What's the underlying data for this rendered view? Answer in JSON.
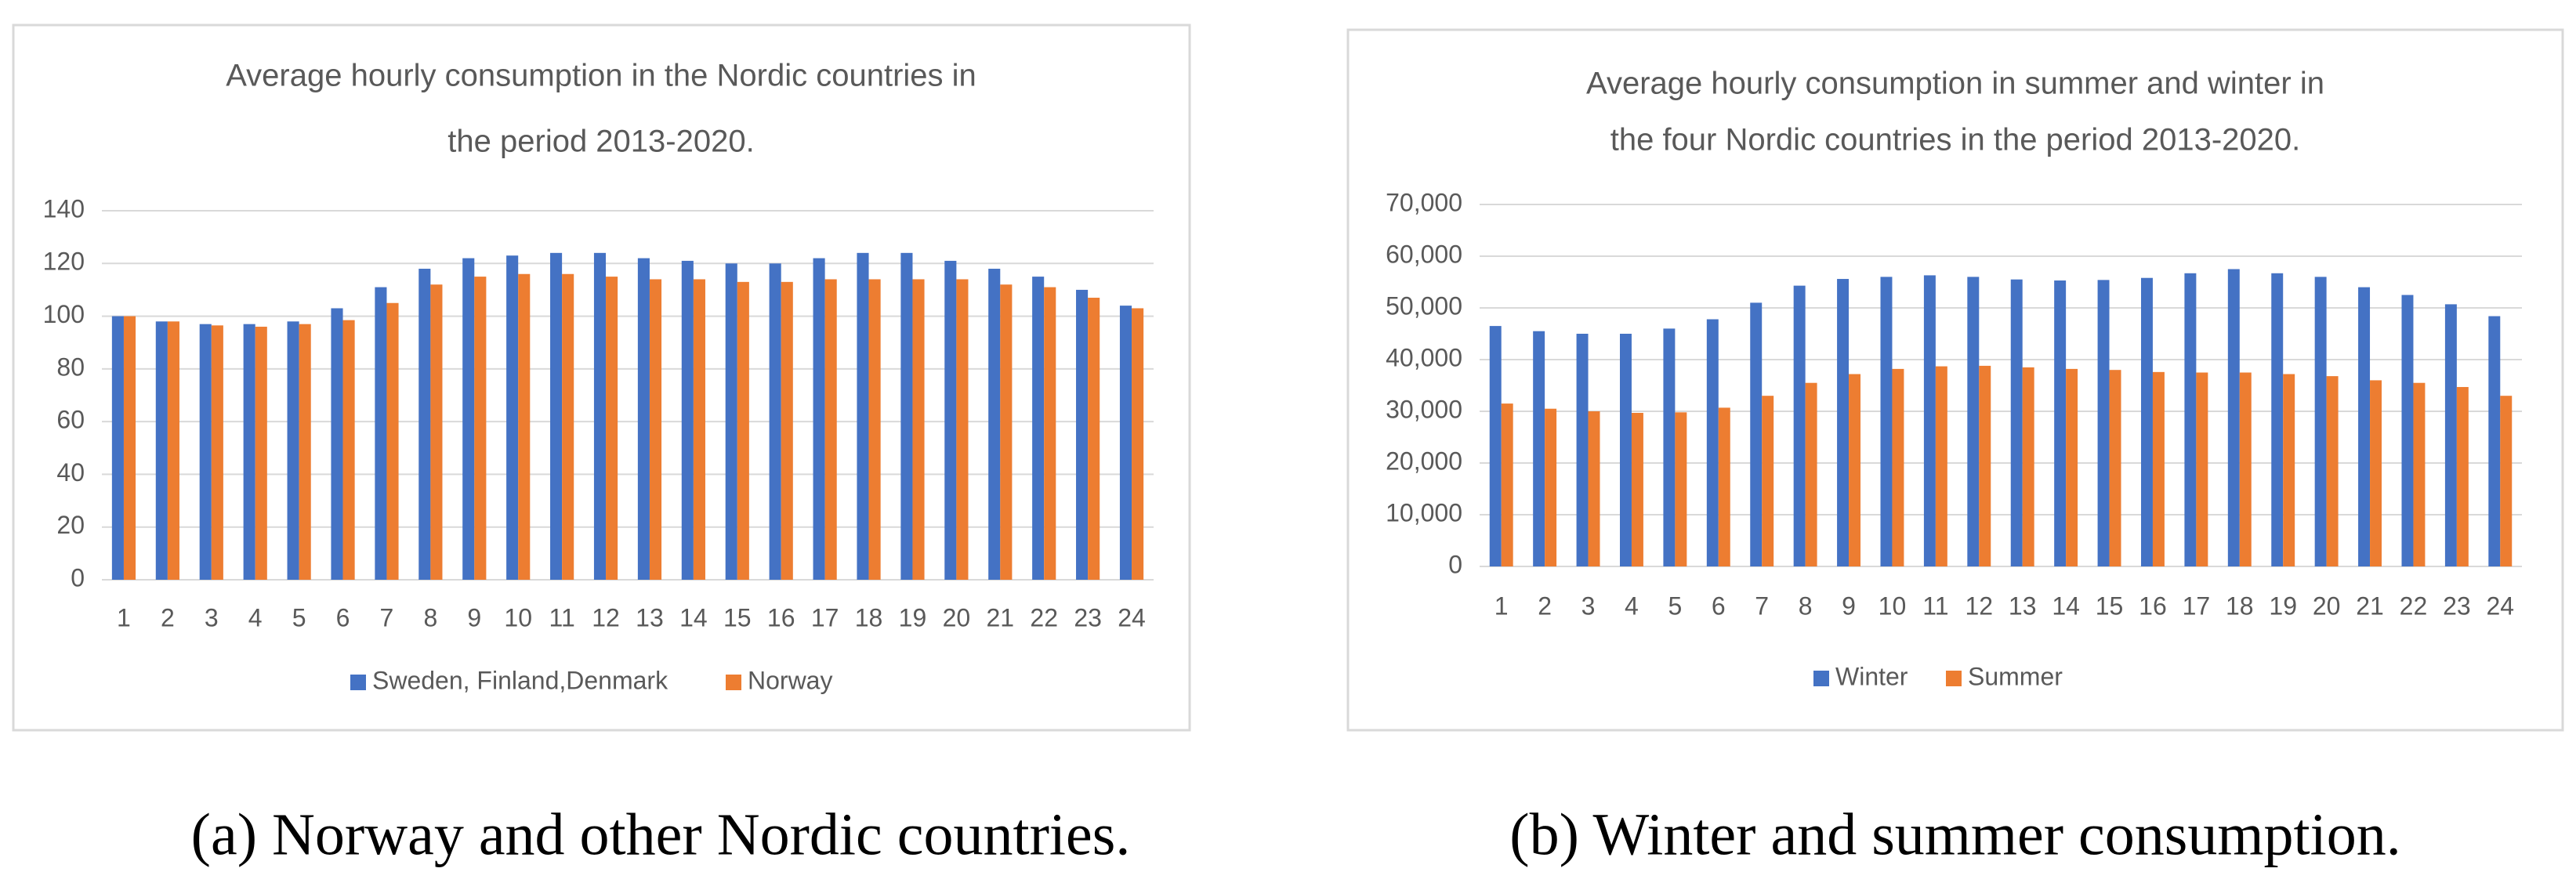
{
  "chart_data": [
    {
      "type": "bar",
      "title": [
        "Average hourly consumption in the Nordic countries in",
        "the period 2013-2020."
      ],
      "caption": "(a) Norway and other Nordic countries.",
      "categories": [
        "1",
        "2",
        "3",
        "4",
        "5",
        "6",
        "7",
        "8",
        "9",
        "10",
        "11",
        "12",
        "13",
        "14",
        "15",
        "16",
        "17",
        "18",
        "19",
        "20",
        "21",
        "22",
        "23",
        "24"
      ],
      "series": [
        {
          "name": "Sweden, Finland,Denmark",
          "color": "#4472c4",
          "values": [
            100,
            98,
            97,
            97,
            98,
            103,
            111,
            118,
            122,
            123,
            124,
            124,
            122,
            121,
            120,
            120,
            122,
            124,
            124,
            121,
            118,
            115,
            110,
            104
          ]
        },
        {
          "name": "Norway",
          "color": "#ed7d31",
          "values": [
            100,
            98,
            96.5,
            96,
            97,
            98.5,
            105,
            112,
            115,
            116,
            116,
            115,
            114,
            114,
            113,
            113,
            114,
            114,
            114,
            114,
            112,
            111,
            107,
            103
          ]
        }
      ],
      "ylim": [
        0,
        140
      ],
      "yticks": [
        0,
        20,
        40,
        60,
        80,
        100,
        120,
        140
      ],
      "grid": true,
      "legend": "bottom"
    },
    {
      "type": "bar",
      "title": [
        "Average hourly consumption in summer and winter in",
        "the  four Nordic countries in the period 2013-2020."
      ],
      "caption": "(b) Winter and summer consumption.",
      "categories": [
        "1",
        "2",
        "3",
        "4",
        "5",
        "6",
        "7",
        "8",
        "9",
        "10",
        "11",
        "12",
        "13",
        "14",
        "15",
        "16",
        "17",
        "18",
        "19",
        "20",
        "21",
        "22",
        "23",
        "24"
      ],
      "series": [
        {
          "name": "Winter",
          "color": "#4472c4",
          "values": [
            46500,
            45500,
            45000,
            45000,
            46000,
            47800,
            51000,
            54300,
            55600,
            56000,
            56300,
            56000,
            55500,
            55300,
            55400,
            55800,
            56700,
            57500,
            56700,
            56000,
            54000,
            52500,
            50700,
            48400
          ]
        },
        {
          "name": "Summer",
          "color": "#ed7d31",
          "values": [
            31500,
            30500,
            30000,
            29700,
            29800,
            30700,
            33000,
            35500,
            37200,
            38200,
            38700,
            38800,
            38500,
            38200,
            38000,
            37600,
            37500,
            37500,
            37200,
            36800,
            36000,
            35500,
            34700,
            33000
          ]
        }
      ],
      "ylim": [
        0,
        70000
      ],
      "yticks": [
        0,
        {
          "value": 10000,
          "label": "10,000"
        },
        {
          "value": 20000,
          "label": "20,000"
        },
        {
          "value": 30000,
          "label": "30,000"
        },
        {
          "value": 40000,
          "label": "40,000"
        },
        {
          "value": 50000,
          "label": "50,000"
        },
        {
          "value": 60000,
          "label": "60,000"
        },
        {
          "value": 70000,
          "label": "70,000"
        }
      ],
      "grid": true,
      "legend": "bottom"
    }
  ]
}
